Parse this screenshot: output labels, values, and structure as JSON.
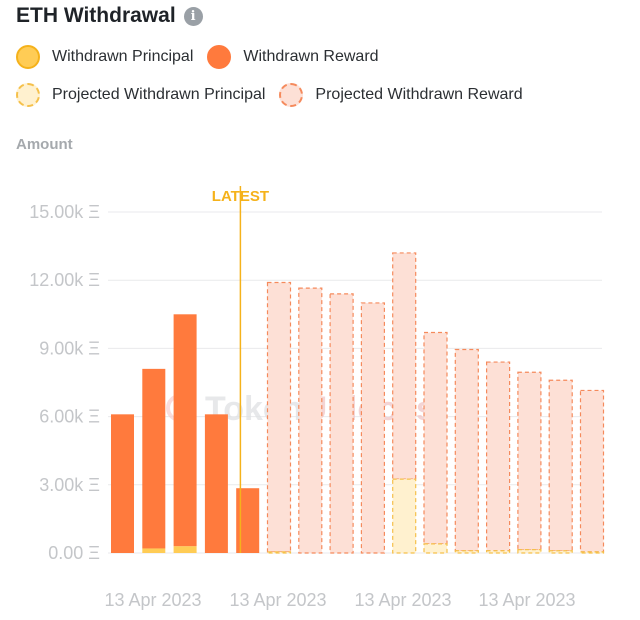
{
  "header": {
    "title": "ETH Withdrawal",
    "info_icon": "info-icon"
  },
  "legend": [
    {
      "label": "Withdrawn Principal",
      "fill": "#ffcc55",
      "stroke": "#f5b21b",
      "dashed": false
    },
    {
      "label": "Withdrawn Reward",
      "fill": "#ff7a3d",
      "stroke": "#ff7a3d",
      "dashed": false
    },
    {
      "label": "Projected Withdrawn Principal",
      "fill": "#fff1cf",
      "stroke": "#f5c04a",
      "dashed": true
    },
    {
      "label": "Projected Withdrawn Reward",
      "fill": "#fde0d6",
      "stroke": "#f58a5c",
      "dashed": true
    }
  ],
  "watermark": {
    "part1": "Token",
    "part2": "Unlocks",
    "dot": "."
  },
  "chart_data": {
    "type": "bar",
    "stacked": true,
    "ylabel": "Amount",
    "ylim": [
      0,
      15000
    ],
    "y_ticks": [
      "0.00 Ξ",
      "3.00k Ξ",
      "6.00k Ξ",
      "9.00k Ξ",
      "12.00k Ξ",
      "15.00k Ξ"
    ],
    "y_tick_values": [
      0,
      3000,
      6000,
      9000,
      12000,
      15000
    ],
    "x_tick_labels": [
      "13 Apr 2023",
      "13 Apr 2023",
      "13 Apr 2023",
      "13 Apr 2023"
    ],
    "latest_marker": {
      "label": "LATEST",
      "after_bar_index": 3
    },
    "grid": true,
    "bar_count": 16,
    "projected_from_index": 5,
    "series": [
      {
        "name": "Withdrawn Principal",
        "values": [
          0,
          200,
          300,
          0,
          0
        ]
      },
      {
        "name": "Withdrawn Reward",
        "values": [
          6100,
          7900,
          10200,
          6100,
          2850
        ]
      },
      {
        "name": "Projected Withdrawn Principal",
        "values": [
          0,
          0,
          0,
          0,
          0,
          50,
          0,
          0,
          0,
          3250,
          400,
          100,
          100,
          150,
          100,
          50
        ]
      },
      {
        "name": "Projected Withdrawn Reward",
        "values": [
          0,
          0,
          0,
          0,
          0,
          11850,
          11650,
          11400,
          11000,
          9950,
          9300,
          8850,
          8300,
          7800,
          7500,
          7100
        ]
      }
    ]
  }
}
